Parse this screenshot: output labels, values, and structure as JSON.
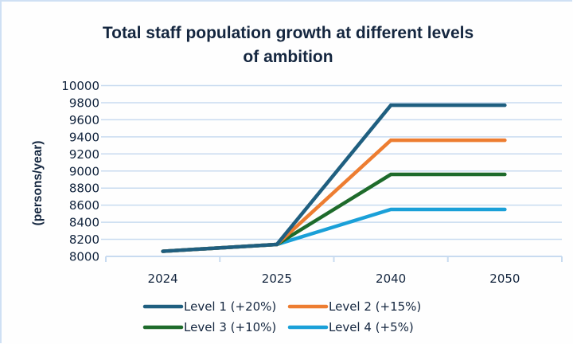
{
  "chart_data": {
    "type": "line",
    "title": "Total staff population growth at different levels of ambition",
    "title_lines": [
      "Total staff population growth at different levels",
      "of ambition"
    ],
    "xlabel": "",
    "ylabel": "(persons/year)",
    "categories": [
      "2024",
      "2025",
      "2040",
      "2050"
    ],
    "ylim": [
      8000,
      10000
    ],
    "yticks": [
      8000,
      8200,
      8400,
      8600,
      8800,
      9000,
      9200,
      9400,
      9600,
      9800,
      10000
    ],
    "grid": true,
    "legend_position": "bottom",
    "series": [
      {
        "name": "Level 1 (+20%)",
        "color": "#1f5f80",
        "values": [
          8060,
          8140,
          9770,
          9770
        ]
      },
      {
        "name": "Level 2 (+15%)",
        "color": "#ed7d31",
        "values": [
          8060,
          8140,
          9360,
          9360
        ]
      },
      {
        "name": "Level 3 (+10%)",
        "color": "#1e6b2b",
        "values": [
          8060,
          8140,
          8960,
          8960
        ]
      },
      {
        "name": "Level 4 (+5%)",
        "color": "#1aa0d8",
        "values": [
          8060,
          8140,
          8550,
          8550
        ]
      }
    ],
    "gridline_color": "#c8dbf0",
    "text_color": "#14263f"
  }
}
